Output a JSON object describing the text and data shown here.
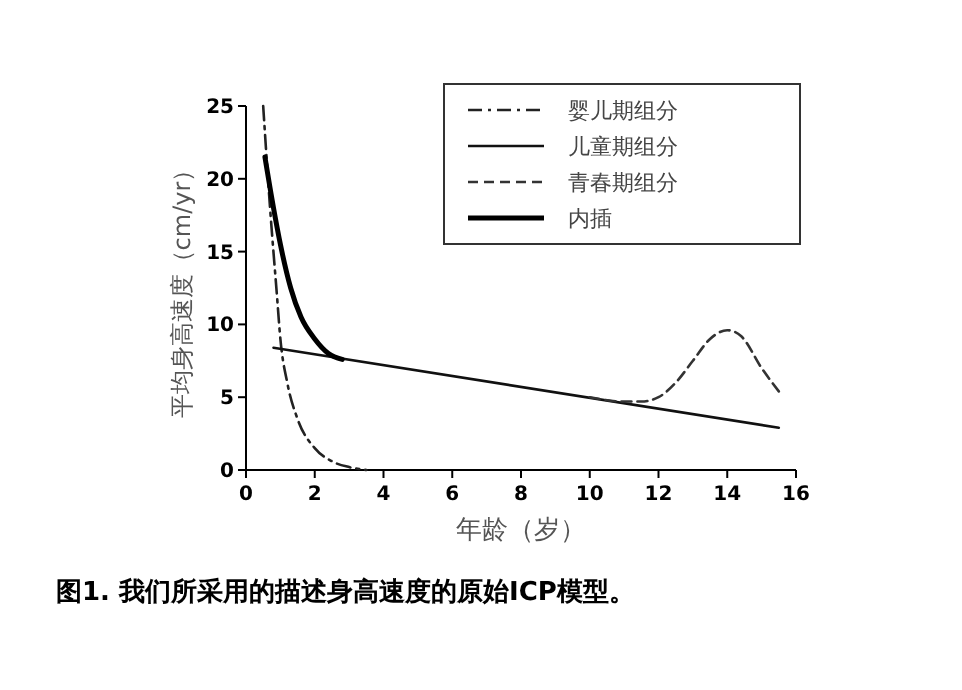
{
  "chart_data": {
    "type": "line",
    "xlabel": "年龄（岁）",
    "ylabel": "平均身高速度（cm/yr）",
    "xlim": [
      0,
      16
    ],
    "ylim": [
      0,
      25
    ],
    "xticks": [
      0,
      2,
      4,
      6,
      8,
      10,
      12,
      14,
      16
    ],
    "yticks": [
      0,
      5,
      10,
      15,
      20,
      25
    ],
    "grid": false,
    "legend": "top right",
    "marker": "none",
    "annotations": [
      "图1. 我们所采用的描述身高速度的原始ICP模型。"
    ],
    "series": [
      {
        "name": "婴儿期组分",
        "color": "#222222",
        "line_style": "dashdot",
        "x": [
          0.5,
          0.7,
          0.9,
          1.0,
          1.2,
          1.5,
          2,
          2.5,
          3,
          3.5
        ],
        "values": [
          25,
          18,
          12,
          9,
          6,
          3.5,
          1.5,
          0.6,
          0.2,
          0
        ]
      },
      {
        "name": "儿童期组分",
        "color": "#111111",
        "line_style": "solid",
        "x": [
          0.8,
          15.5
        ],
        "values": [
          8.4,
          2.9
        ]
      },
      {
        "name": "青春期组分",
        "color": "#333333",
        "line_style": "dashed",
        "x": [
          10,
          11,
          11.5,
          12,
          12.5,
          13,
          13.5,
          14,
          14.4,
          15,
          15.5
        ],
        "values": [
          5,
          4.7,
          4.7,
          5,
          6,
          7.5,
          9,
          9.6,
          9.2,
          7,
          5.4
        ]
      },
      {
        "name": "内插",
        "color": "#000000",
        "line_style": "solid",
        "x": [
          0.55,
          0.8,
          1,
          1.3,
          1.6,
          2,
          2.4,
          2.8
        ],
        "values": [
          21.5,
          18,
          15.5,
          12.5,
          10.5,
          9,
          8,
          7.6
        ]
      }
    ]
  }
}
